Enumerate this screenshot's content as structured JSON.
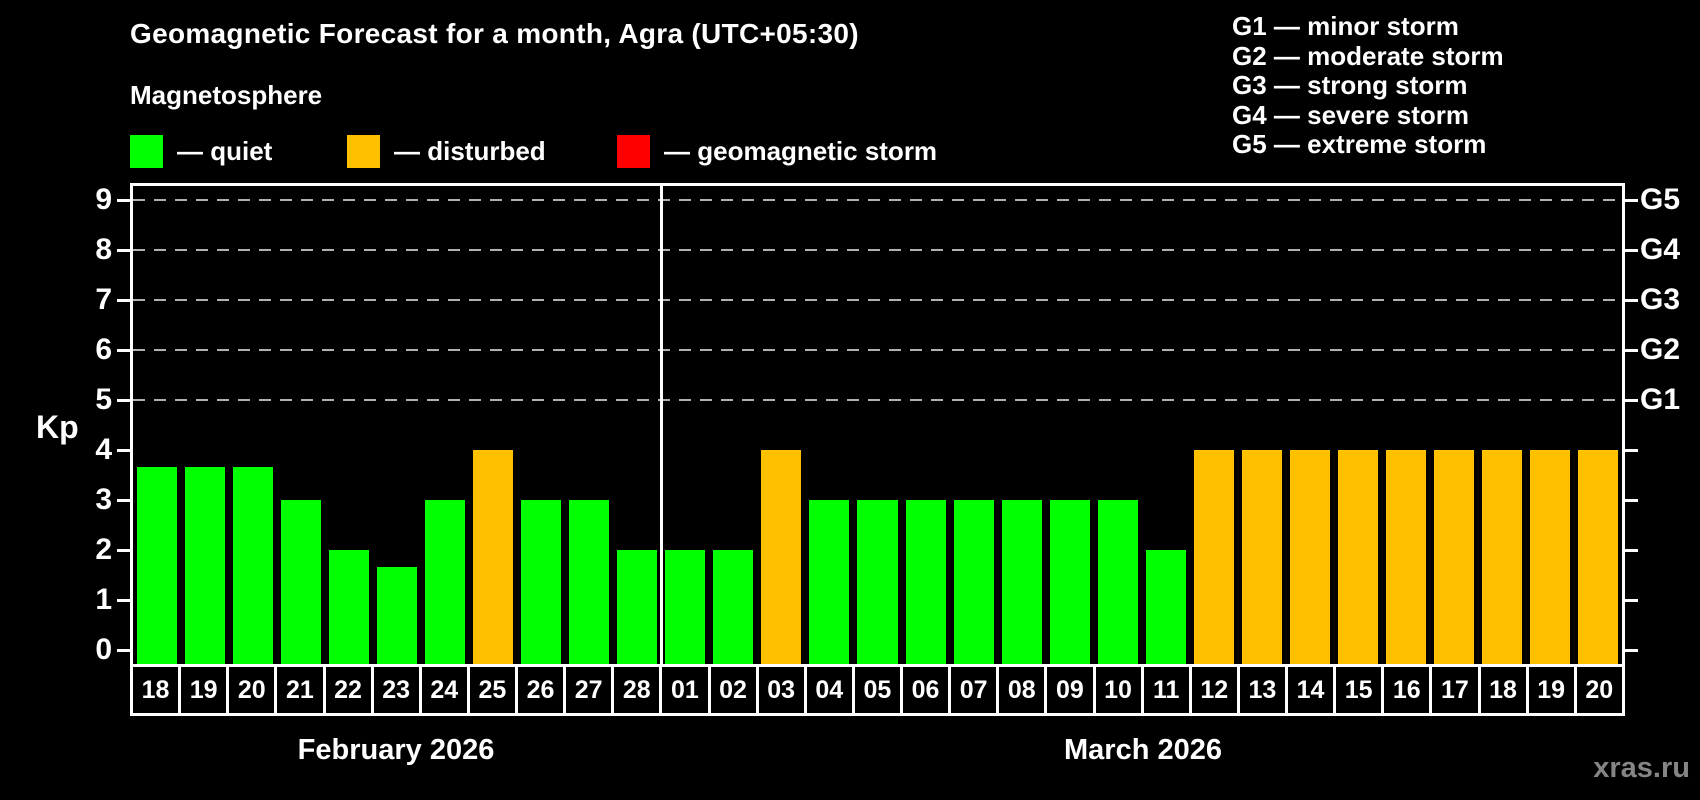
{
  "title": "Geomagnetic Forecast for a month, Agra (UTC+05:30)",
  "subtitle": "Magnetosphere",
  "magnetosphere_legend": [
    {
      "status": "quiet",
      "label": "— quiet",
      "color": "#00ff00"
    },
    {
      "status": "disturbed",
      "label": "— disturbed",
      "color": "#ffc000"
    },
    {
      "status": "geomagnetic-storm",
      "label": "— geomagnetic storm",
      "color": "#ff0000"
    }
  ],
  "storm_scale_legend": [
    "G1 — minor storm",
    "G2 — moderate storm",
    "G3 — strong storm",
    "G4 — severe storm",
    "G5 — extreme storm"
  ],
  "y_axis": {
    "title": "Kp",
    "ticks": [
      "0",
      "1",
      "2",
      "3",
      "4",
      "5",
      "6",
      "7",
      "8",
      "9"
    ],
    "right_labels": [
      {
        "kp": 5,
        "label": "G1"
      },
      {
        "kp": 6,
        "label": "G2"
      },
      {
        "kp": 7,
        "label": "G3"
      },
      {
        "kp": 8,
        "label": "G4"
      },
      {
        "kp": 9,
        "label": "G5"
      }
    ]
  },
  "months": [
    {
      "label": "February 2026",
      "days": [
        "18",
        "19",
        "20",
        "21",
        "22",
        "23",
        "24",
        "25",
        "26",
        "27",
        "28"
      ]
    },
    {
      "label": "March 2026",
      "days": [
        "01",
        "02",
        "03",
        "04",
        "05",
        "06",
        "07",
        "08",
        "09",
        "10",
        "11",
        "12",
        "13",
        "14",
        "15",
        "16",
        "17",
        "18",
        "19",
        "20"
      ]
    }
  ],
  "watermark": "xras.ru",
  "colors": {
    "quiet": "#00ff00",
    "disturbed": "#ffc000",
    "storm": "#ff0000",
    "background": "#000000",
    "axis": "#ffffff",
    "gridline": "#b0b0b0",
    "watermark_gray": "#858585"
  },
  "chart_data": {
    "type": "bar",
    "title": "Geomagnetic Forecast for a month, Agra (UTC+05:30)",
    "xlabel": "",
    "ylabel": "Kp",
    "ylim": [
      0,
      9.4
    ],
    "grid": "dashed horizontal at Kp 5-9",
    "gridlines_at": [
      5,
      6,
      7,
      8,
      9
    ],
    "legend_position": "top-left",
    "bars": [
      {
        "month": "February 2026",
        "day": "18",
        "kp": 3.67,
        "status": "quiet"
      },
      {
        "month": "February 2026",
        "day": "19",
        "kp": 3.67,
        "status": "quiet"
      },
      {
        "month": "February 2026",
        "day": "20",
        "kp": 3.67,
        "status": "quiet"
      },
      {
        "month": "February 2026",
        "day": "21",
        "kp": 3,
        "status": "quiet"
      },
      {
        "month": "February 2026",
        "day": "22",
        "kp": 2,
        "status": "quiet"
      },
      {
        "month": "February 2026",
        "day": "23",
        "kp": 1.67,
        "status": "quiet"
      },
      {
        "month": "February 2026",
        "day": "24",
        "kp": 3,
        "status": "quiet"
      },
      {
        "month": "February 2026",
        "day": "25",
        "kp": 4,
        "status": "disturbed"
      },
      {
        "month": "February 2026",
        "day": "26",
        "kp": 3,
        "status": "quiet"
      },
      {
        "month": "February 2026",
        "day": "27",
        "kp": 3,
        "status": "quiet"
      },
      {
        "month": "February 2026",
        "day": "28",
        "kp": 2,
        "status": "quiet"
      },
      {
        "month": "March 2026",
        "day": "01",
        "kp": 2,
        "status": "quiet"
      },
      {
        "month": "March 2026",
        "day": "02",
        "kp": 2,
        "status": "quiet"
      },
      {
        "month": "March 2026",
        "day": "03",
        "kp": 4,
        "status": "disturbed"
      },
      {
        "month": "March 2026",
        "day": "04",
        "kp": 3,
        "status": "quiet"
      },
      {
        "month": "March 2026",
        "day": "05",
        "kp": 3,
        "status": "quiet"
      },
      {
        "month": "March 2026",
        "day": "06",
        "kp": 3,
        "status": "quiet"
      },
      {
        "month": "March 2026",
        "day": "07",
        "kp": 3,
        "status": "quiet"
      },
      {
        "month": "March 2026",
        "day": "08",
        "kp": 3,
        "status": "quiet"
      },
      {
        "month": "March 2026",
        "day": "09",
        "kp": 3,
        "status": "quiet"
      },
      {
        "month": "March 2026",
        "day": "10",
        "kp": 3,
        "status": "quiet"
      },
      {
        "month": "March 2026",
        "day": "11",
        "kp": 2,
        "status": "quiet"
      },
      {
        "month": "March 2026",
        "day": "12",
        "kp": 4,
        "status": "disturbed"
      },
      {
        "month": "March 2026",
        "day": "13",
        "kp": 4,
        "status": "disturbed"
      },
      {
        "month": "March 2026",
        "day": "14",
        "kp": 4,
        "status": "disturbed"
      },
      {
        "month": "March 2026",
        "day": "15",
        "kp": 4,
        "status": "disturbed"
      },
      {
        "month": "March 2026",
        "day": "16",
        "kp": 4,
        "status": "disturbed"
      },
      {
        "month": "March 2026",
        "day": "17",
        "kp": 4,
        "status": "disturbed"
      },
      {
        "month": "March 2026",
        "day": "18",
        "kp": 4,
        "status": "disturbed"
      },
      {
        "month": "March 2026",
        "day": "19",
        "kp": 4,
        "status": "disturbed"
      },
      {
        "month": "March 2026",
        "day": "20",
        "kp": 4,
        "status": "disturbed"
      }
    ]
  }
}
